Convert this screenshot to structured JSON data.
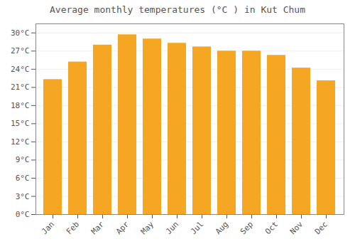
{
  "chart_data": {
    "type": "bar",
    "title": "Average monthly temperatures (°C ) in Kut Chum",
    "categories": [
      "Jan",
      "Feb",
      "Mar",
      "Apr",
      "May",
      "Jun",
      "Jul",
      "Aug",
      "Sep",
      "Oct",
      "Nov",
      "Dec"
    ],
    "values": [
      22.3,
      25.2,
      28.0,
      29.7,
      29.0,
      28.3,
      27.7,
      27.0,
      27.0,
      26.3,
      24.2,
      22.1
    ],
    "color": "#F5A623",
    "ylim": [
      0,
      31.5
    ],
    "yticks": [
      {
        "value": 0,
        "label": "0°C"
      },
      {
        "value": 3,
        "label": "3°C"
      },
      {
        "value": 6,
        "label": "6°C"
      },
      {
        "value": 9,
        "label": "9°C"
      },
      {
        "value": 12,
        "label": "12°C"
      },
      {
        "value": 15,
        "label": "15°C"
      },
      {
        "value": 18,
        "label": "18°C"
      },
      {
        "value": 21,
        "label": "21°C"
      },
      {
        "value": 24,
        "label": "24°C"
      },
      {
        "value": 27,
        "label": "27°C"
      },
      {
        "value": 30,
        "label": "30°C"
      }
    ],
    "grid": true
  }
}
